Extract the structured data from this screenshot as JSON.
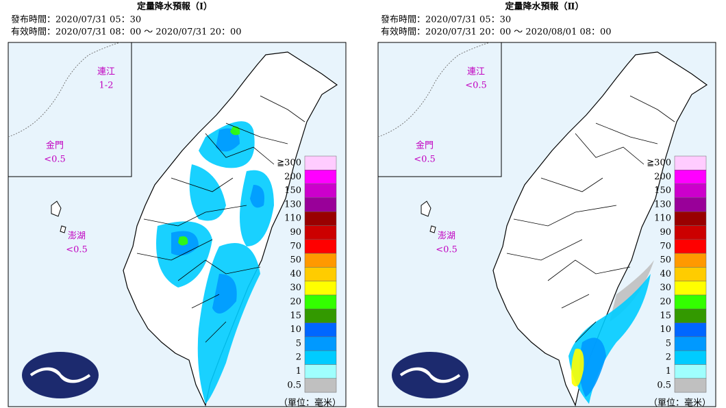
{
  "panels": [
    {
      "title": "定量降水預報（Ⅰ）",
      "issued": "發布時間：2020/07/31 05：30",
      "valid": "有效時間：2020/07/31 08：00 ～ 2020/07/31 20：00",
      "islands": [
        {
          "name": "連江",
          "value": "1-2"
        },
        {
          "name": "金門",
          "value": "<0.5"
        },
        {
          "name": "澎湖",
          "value": "<0.5"
        }
      ],
      "unit": "（單位：毫米）"
    },
    {
      "title": "定量降水預報（Ⅱ）",
      "issued": "發布時間：2020/07/31 05：30",
      "valid": "有效時間：2020/07/31 20：00 ～ 2020/08/01 08：00",
      "islands": [
        {
          "name": "連江",
          "value": "<0.5"
        },
        {
          "name": "金門",
          "value": "<0.5"
        },
        {
          "name": "澎湖",
          "value": "<0.5"
        }
      ],
      "unit": "（單位：毫米）"
    }
  ],
  "legend": {
    "labels": [
      "≧300",
      "200",
      "150",
      "130",
      "110",
      "90",
      "70",
      "50",
      "40",
      "30",
      "20",
      "15",
      "10",
      "5",
      "2",
      "1",
      "0.5"
    ],
    "colors": [
      "#ffccff",
      "#ff00ff",
      "#cc00cc",
      "#990099",
      "#990000",
      "#cc0000",
      "#ff0000",
      "#ff9900",
      "#ffcc00",
      "#ffff00",
      "#33ff00",
      "#339900",
      "#0066ff",
      "#0099ff",
      "#00ccff",
      "#9ffffe",
      "#c0c0c0"
    ]
  }
}
